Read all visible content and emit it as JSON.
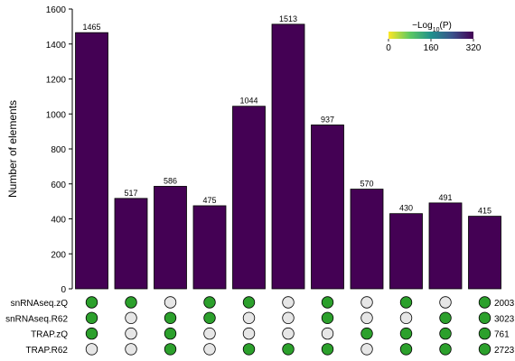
{
  "chart_data": {
    "type": "bar",
    "ylabel": "Number of elements",
    "ylim": [
      0,
      1600
    ],
    "yticks": [
      0,
      200,
      400,
      600,
      800,
      1000,
      1200,
      1400,
      1600
    ],
    "values": [
      1465,
      517,
      586,
      475,
      1044,
      1513,
      937,
      570,
      430,
      491,
      415
    ],
    "bar_color": "#440154",
    "legend": {
      "title_prefix": "−Log",
      "title_sub": "10",
      "title_suffix": "(P)",
      "ticks": [
        "0",
        "160",
        "320"
      ],
      "placement": "top-right",
      "colormap": [
        "#fde725",
        "#5ec962",
        "#21918c",
        "#3b528b",
        "#440154"
      ]
    },
    "sets": [
      {
        "name": "snRNAseq.zQ",
        "total": "2003",
        "membership": [
          1,
          1,
          0,
          1,
          1,
          0,
          1,
          0,
          1,
          0,
          1
        ]
      },
      {
        "name": "snRNAseq.R62",
        "total": "3023",
        "membership": [
          1,
          0,
          1,
          1,
          0,
          0,
          1,
          0,
          0,
          1,
          1
        ]
      },
      {
        "name": "TRAP.zQ",
        "total": "761",
        "membership": [
          1,
          0,
          1,
          0,
          0,
          0,
          0,
          1,
          1,
          1,
          1
        ]
      },
      {
        "name": "TRAP.R62",
        "total": "2723",
        "membership": [
          0,
          0,
          1,
          0,
          1,
          1,
          1,
          0,
          1,
          1,
          1
        ]
      }
    ],
    "dot_colors": {
      "in": "#2ca02c",
      "out": "#e6e6e6"
    }
  }
}
